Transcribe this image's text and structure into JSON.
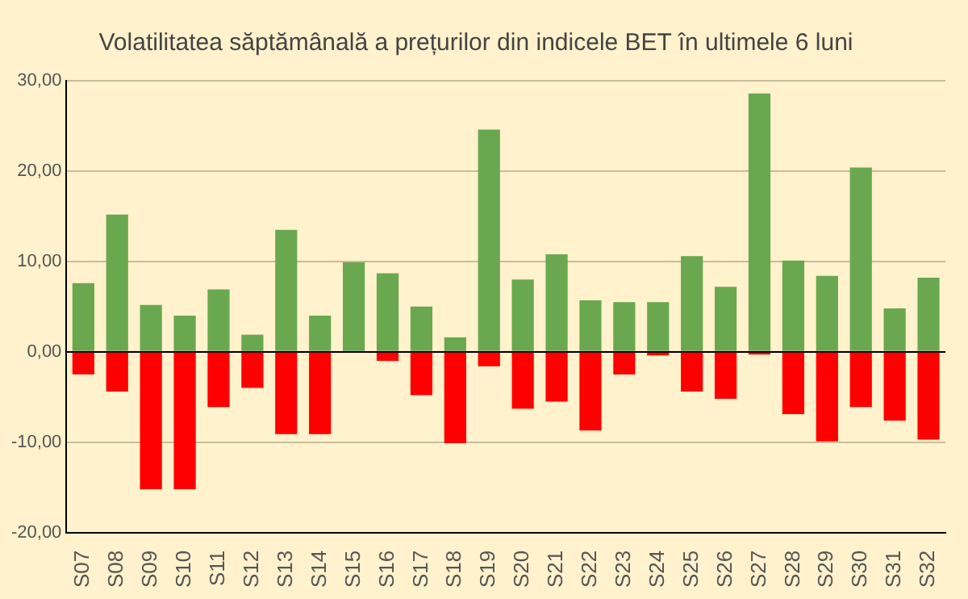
{
  "chart_data": {
    "type": "bar",
    "title": "Volatilitatea săptămânală a prețurilor din indicele BET în ultimele 6 luni",
    "stacked": true,
    "categories": [
      "S07",
      "S08",
      "S09",
      "S10",
      "S11",
      "S12",
      "S13",
      "S14",
      "S15",
      "S16",
      "S17",
      "S18",
      "S19",
      "S20",
      "S21",
      "S22",
      "S23",
      "S24",
      "S25",
      "S26",
      "S27",
      "S28",
      "S29",
      "S30",
      "S31",
      "S32"
    ],
    "series": [
      {
        "color": "#6aa84f",
        "values": [
          7.6,
          15.2,
          5.2,
          4.0,
          6.9,
          1.9,
          13.5,
          4.0,
          9.9,
          8.7,
          5.0,
          1.6,
          24.6,
          8.0,
          10.8,
          5.7,
          5.5,
          5.5,
          10.6,
          7.2,
          28.6,
          10.1,
          8.4,
          20.4,
          4.8,
          8.2
        ]
      },
      {
        "color": "#ff0000",
        "values": [
          -2.5,
          -4.4,
          -15.2,
          -15.2,
          -6.1,
          -4.0,
          -9.1,
          -9.1,
          null,
          -1.0,
          -4.8,
          -10.1,
          -1.6,
          -6.3,
          -5.5,
          -8.7,
          -2.5,
          -0.4,
          -4.4,
          -5.2,
          -0.3,
          -6.9,
          -9.9,
          -6.1,
          -7.6,
          -9.7
        ]
      }
    ],
    "ylim": [
      -20,
      30
    ],
    "yticks": [
      {
        "value": -20,
        "label": "-20,00"
      },
      {
        "value": -10,
        "label": "-10,00"
      },
      {
        "value": 0,
        "label": "0,00"
      },
      {
        "value": 10,
        "label": "10,00"
      },
      {
        "value": 20,
        "label": "20,00"
      },
      {
        "value": 30,
        "label": "30,00"
      }
    ],
    "grid": "y"
  }
}
